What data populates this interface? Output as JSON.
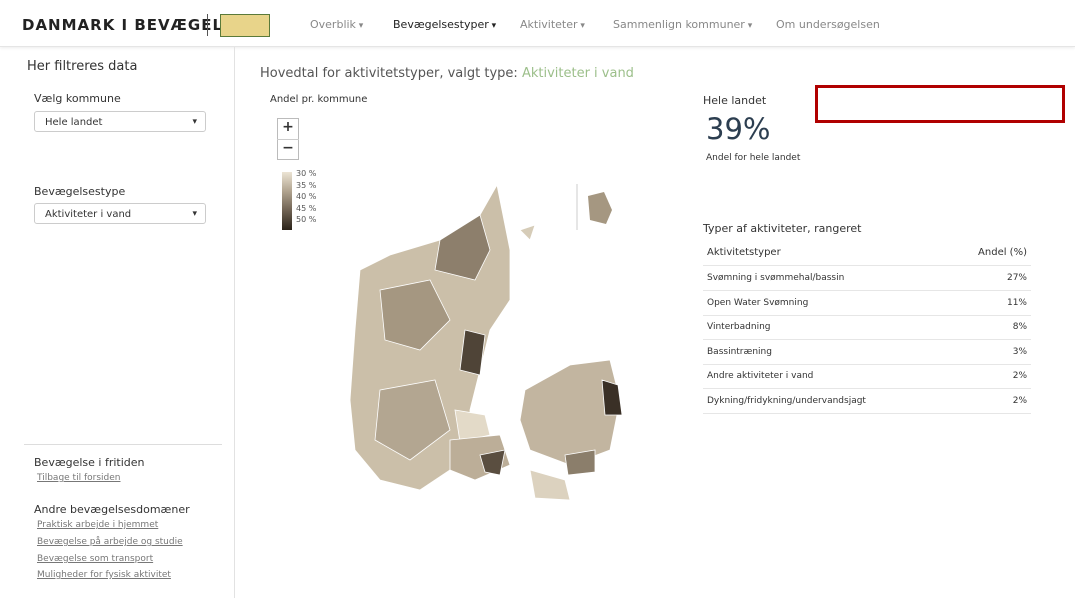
{
  "nav": {
    "brand": "DANMARK I BEVÆGELSE",
    "menu": [
      "Overblik",
      "Bevægelsestyper",
      "Aktiviteter",
      "Sammenlign kommuner",
      "Om undersøgelsen"
    ]
  },
  "sidebar": {
    "title": "Her filtreres data",
    "filters": [
      {
        "label": "Vælg kommune",
        "value": "Hele landet"
      },
      {
        "label": "Bevægelsestype",
        "value": "Aktiviteter i vand"
      }
    ],
    "sections": [
      {
        "heading": "Bevægelse i fritiden",
        "links": [
          "Tilbage til forsiden"
        ]
      },
      {
        "heading": "Andre bevægelsesdomæner",
        "links": [
          "Praktisk arbejde i hjemmet",
          "Bevægelse på arbejde og studie",
          "Bevægelse som transport",
          "Muligheder for fysisk aktivitet"
        ]
      }
    ]
  },
  "main": {
    "heading": "Hovedtal for aktivitetstyper, valgt type:",
    "selected": "Aktiviteter i vand",
    "map": {
      "title": "Andel pr. kommune",
      "zoom": [
        "+",
        "−"
      ],
      "legend": [
        "30 %",
        "35 %",
        "40 %",
        "45 %",
        "50 %"
      ]
    },
    "kpi": {
      "label": "Hele landet",
      "value": "39%",
      "caption": "Andel for hele landet"
    },
    "table": {
      "title": "Typer af aktiviteter, rangeret",
      "headers": [
        "Aktivitetstyper",
        "Andel (%)"
      ],
      "rows": [
        [
          "Svømning i svømmehal/bassin",
          "27%"
        ],
        [
          "Open Water Svømning",
          "11%"
        ],
        [
          "Vinterbadning",
          "8%"
        ],
        [
          "Bassintræning",
          "3%"
        ],
        [
          "Andre aktiviteter i vand",
          "2%"
        ],
        [
          "Dykning/fridykning/undervandsjagt",
          "2%"
        ]
      ]
    }
  }
}
